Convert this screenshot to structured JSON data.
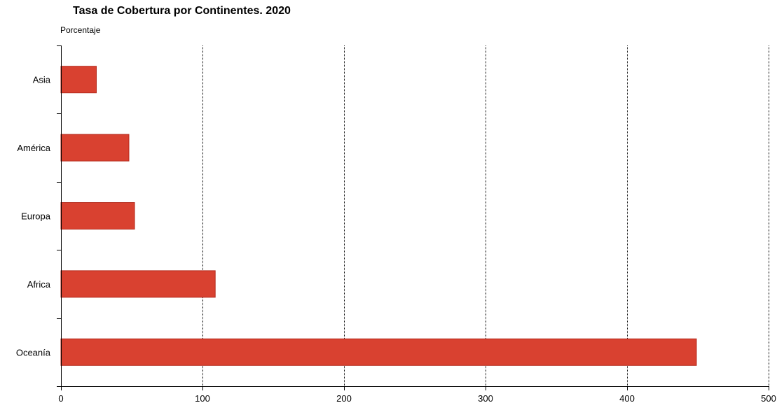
{
  "chart_data": {
    "type": "bar",
    "orientation": "horizontal",
    "title": "Tasa de Cobertura por Continentes. 2020",
    "subtitle": "Porcentaje",
    "categories": [
      "Asia",
      "América",
      "Europa",
      "Africa",
      "Oceanía"
    ],
    "values": [
      25,
      48,
      52,
      109,
      449
    ],
    "xlim": [
      0,
      500
    ],
    "xticks": [
      "0",
      "100",
      "200",
      "300",
      "400",
      "500"
    ],
    "grid": "vertical-dotted",
    "legend": "none",
    "colors": {
      "bar_fill": "#d94130",
      "bar_stroke": "#b52a1c"
    }
  }
}
